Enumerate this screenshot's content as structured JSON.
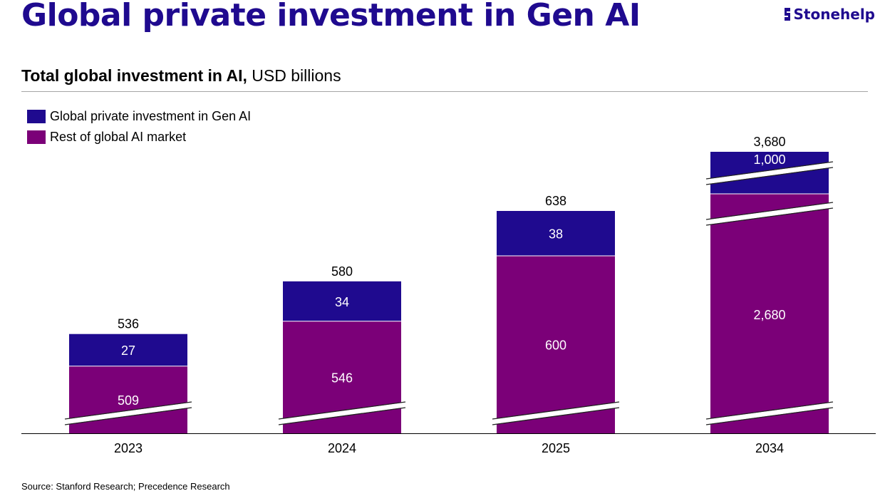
{
  "header": {
    "title": "Global private investment in Gen AI",
    "logo_text": "Stonehelp",
    "subtitle_bold": "Total global investment in AI,",
    "subtitle_rest": " USD billions"
  },
  "footer": {
    "source": "Source: Stanford Research; Precedence Research"
  },
  "colors": {
    "gen_ai": "#1f0a8f",
    "rest": "#7b0078",
    "title": "#1f0a8f"
  },
  "chart_data": {
    "type": "bar",
    "stacked": true,
    "categories": [
      "2023",
      "2024",
      "2025",
      "2034"
    ],
    "series": [
      {
        "name": "Rest of global AI market",
        "values": [
          509,
          546,
          600,
          2680
        ],
        "labels": [
          "509",
          "546",
          "600",
          "2,680"
        ]
      },
      {
        "name": "Global private investment in Gen AI",
        "values": [
          27,
          34,
          38,
          1000
        ],
        "labels": [
          "27",
          "34",
          "38",
          "1,000"
        ]
      }
    ],
    "totals": [
      536,
      580,
      638,
      3680
    ],
    "total_labels": [
      "536",
      "580",
      "638",
      "3,680"
    ],
    "axis_breaks": {
      "rest": [
        true,
        true,
        true,
        true
      ],
      "gen_ai": [
        false,
        false,
        false,
        true
      ],
      "rest_top": [
        false,
        false,
        false,
        true
      ]
    },
    "legend": {
      "position": "top-left",
      "order": [
        "Global private investment in Gen AI",
        "Rest of global AI market"
      ]
    },
    "grid": false
  }
}
